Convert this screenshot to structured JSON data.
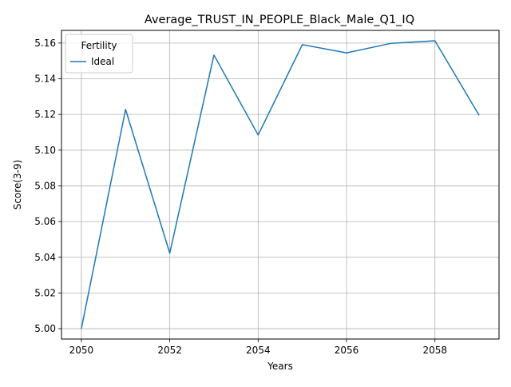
{
  "chart_data": {
    "type": "line",
    "title": "Average_TRUST_IN_PEOPLE_Black_Male_Q1_IQ",
    "xlabel": "Years",
    "ylabel": "Score(3-9)",
    "x": [
      2050,
      2051,
      2052,
      2053,
      2054,
      2055,
      2056,
      2057,
      2058,
      2059
    ],
    "series": [
      {
        "name": "Ideal",
        "color": "#1f77b4",
        "values": [
          5.0,
          5.1228,
          5.0423,
          5.1533,
          5.1085,
          5.1591,
          5.1545,
          5.1598,
          5.1613,
          5.1195
        ]
      }
    ],
    "xlim": [
      2049.55,
      2059.45
    ],
    "ylim": [
      4.9942,
      5.1671
    ],
    "xticks": [
      2050,
      2052,
      2054,
      2056,
      2058
    ],
    "xtick_labels": [
      "2050",
      "2052",
      "2054",
      "2056",
      "2058"
    ],
    "yticks": [
      5.0,
      5.02,
      5.04,
      5.06,
      5.08,
      5.1,
      5.12,
      5.14,
      5.16
    ],
    "ytick_labels": [
      "5.00",
      "5.02",
      "5.04",
      "5.06",
      "5.08",
      "5.10",
      "5.12",
      "5.14",
      "5.16"
    ],
    "grid": true,
    "legend": {
      "title": "Fertility",
      "position": "top-left"
    }
  }
}
